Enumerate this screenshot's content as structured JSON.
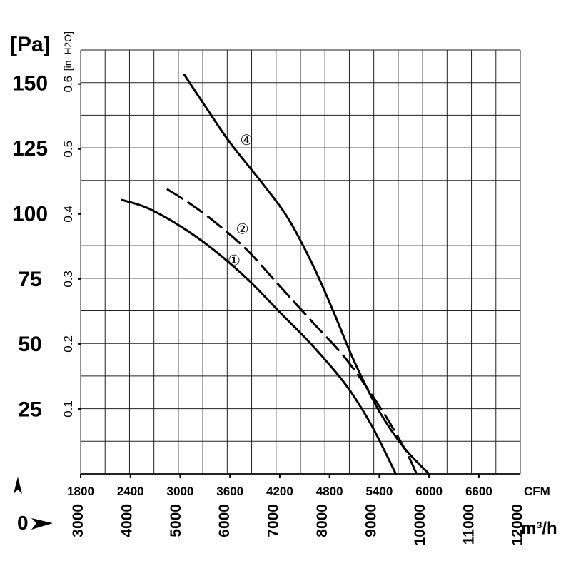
{
  "chart_data": {
    "type": "line",
    "title": "",
    "units": {
      "pressure_pa": "[Pa]",
      "pressure_inh2o": "[in. H2O]",
      "flow_cfm": "CFM",
      "flow_m3h": "m³/h"
    },
    "y_pa_ticks": [
      "25",
      "50",
      "75",
      "100",
      "125",
      "150"
    ],
    "y_inh2o_ticks": [
      "0.1",
      "0.2",
      "0.3",
      "0.4",
      "0.5",
      "0.6"
    ],
    "x_cfm_ticks": [
      "1800",
      "2400",
      "3000",
      "3600",
      "4200",
      "4800",
      "5400",
      "6000",
      "6600"
    ],
    "x_m3h_ticks": [
      "3000",
      "4000",
      "5000",
      "6000",
      "7000",
      "8000",
      "9000",
      "10000",
      "11000",
      "12000"
    ],
    "origin_label": "0",
    "xlim_cfm": [
      1800,
      7100
    ],
    "ylim_pa": [
      0,
      162.5
    ],
    "grid": true,
    "series": [
      {
        "name": "①",
        "style": "solid",
        "points": [
          [
            2300,
            105
          ],
          [
            2600,
            102
          ],
          [
            3000,
            95
          ],
          [
            3400,
            86
          ],
          [
            3800,
            75
          ],
          [
            4200,
            62
          ],
          [
            4600,
            49
          ],
          [
            5000,
            34
          ],
          [
            5300,
            19
          ],
          [
            5600,
            0
          ]
        ]
      },
      {
        "name": "②",
        "style": "dashed",
        "points": [
          [
            2850,
            109
          ],
          [
            3100,
            104
          ],
          [
            3400,
            97
          ],
          [
            3800,
            86
          ],
          [
            4200,
            72
          ],
          [
            4600,
            58
          ],
          [
            5000,
            44
          ],
          [
            5400,
            26
          ],
          [
            5700,
            10
          ],
          [
            5850,
            0
          ]
        ]
      },
      {
        "name": "④",
        "style": "solid",
        "points": [
          [
            3050,
            153
          ],
          [
            3300,
            141
          ],
          [
            3600,
            127
          ],
          [
            4000,
            111
          ],
          [
            4300,
            98
          ],
          [
            4600,
            80
          ],
          [
            4850,
            62
          ],
          [
            5100,
            43
          ],
          [
            5400,
            24
          ],
          [
            5700,
            10
          ],
          [
            6000,
            0
          ]
        ]
      }
    ],
    "labels": [
      {
        "text": "①",
        "x": 3650,
        "y": 82
      },
      {
        "text": "②",
        "x": 3750,
        "y": 94
      },
      {
        "text": "④",
        "x": 3800,
        "y": 128
      }
    ]
  }
}
